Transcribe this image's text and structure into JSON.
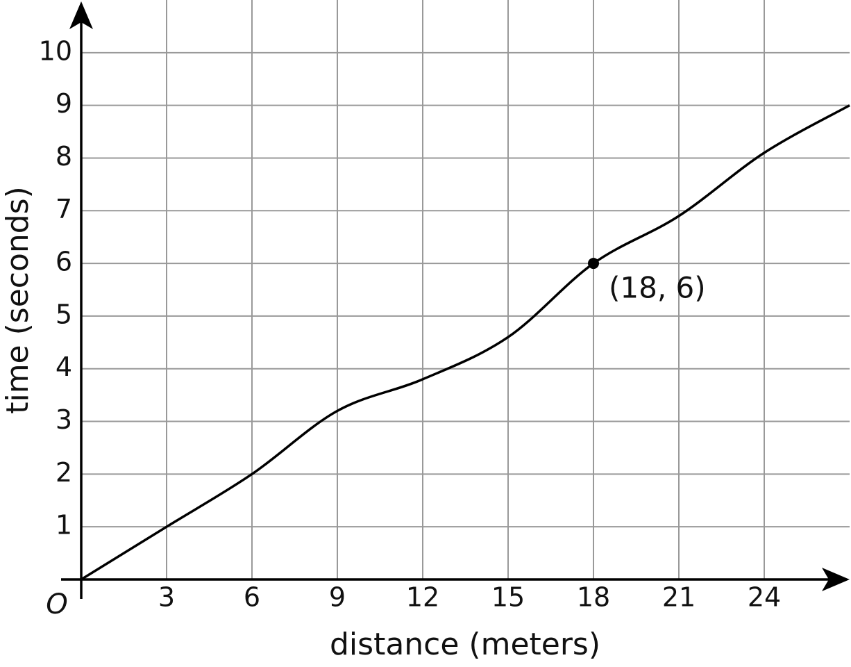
{
  "chart_data": {
    "type": "line",
    "x_label": "distance (meters)",
    "y_label": "time (seconds)",
    "origin_label": "O",
    "xlim": [
      0,
      27
    ],
    "ylim": [
      0,
      11
    ],
    "xticks": [
      3,
      6,
      9,
      12,
      15,
      18,
      21,
      24
    ],
    "yticks": [
      1,
      2,
      3,
      4,
      5,
      6,
      7,
      8,
      9,
      10
    ],
    "grid": true,
    "x": [
      0,
      3,
      6,
      9,
      12,
      15,
      18,
      21,
      24,
      27
    ],
    "series": [
      {
        "color": "#000000",
        "values": [
          0,
          1,
          2,
          3.2,
          3.8,
          4.6,
          6,
          6.9,
          8.1,
          9
        ]
      }
    ],
    "points": [
      {
        "x": 18,
        "y": 6,
        "label": "(18, 6)"
      }
    ]
  }
}
